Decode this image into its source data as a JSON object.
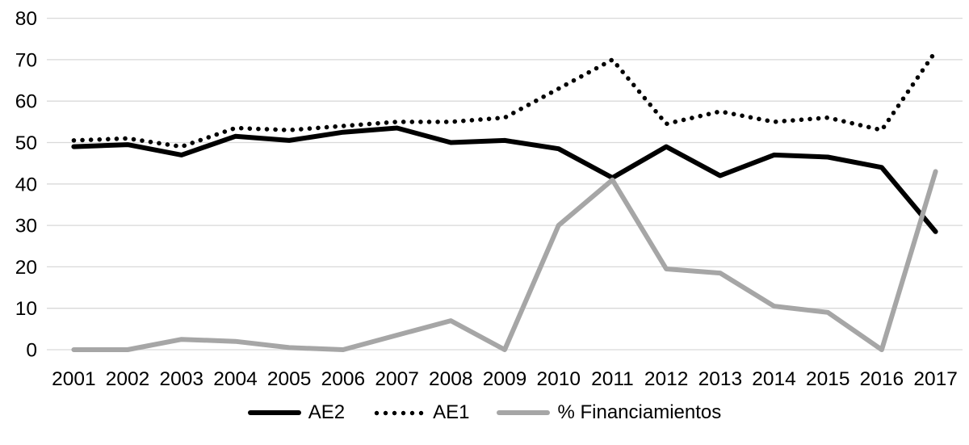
{
  "chart_data": {
    "type": "line",
    "title": "",
    "xlabel": "",
    "ylabel": "",
    "categories": [
      "2001",
      "2002",
      "2003",
      "2004",
      "2005",
      "2006",
      "2007",
      "2008",
      "2009",
      "2010",
      "2011",
      "2012",
      "2013",
      "2014",
      "2015",
      "2016",
      "2017"
    ],
    "series": [
      {
        "name": "AE2",
        "color": "#000000",
        "style": "solid",
        "values": [
          49,
          49.5,
          47,
          51.5,
          50.5,
          52.5,
          53.5,
          50,
          50.5,
          48.5,
          41.5,
          49,
          42,
          47,
          46.5,
          44,
          28.5
        ]
      },
      {
        "name": "AE1",
        "color": "#000000",
        "style": "dotted",
        "values": [
          50.5,
          51,
          49,
          53.5,
          53,
          54,
          55,
          55,
          56,
          63,
          70,
          54.5,
          57.5,
          55,
          56,
          53,
          72
        ]
      },
      {
        "name": "% Financiamientos",
        "color": "#a6a6a6",
        "style": "solid",
        "values": [
          0,
          0,
          2.5,
          2,
          0.5,
          0,
          3.5,
          7,
          0,
          30,
          41,
          19.5,
          18.5,
          10.5,
          9,
          0,
          43
        ]
      }
    ],
    "ylim": [
      0,
      80
    ],
    "yticks": [
      0,
      10,
      20,
      30,
      40,
      50,
      60,
      70,
      80
    ],
    "grid": "horizontal-only",
    "gridline_color": "#d9d9d9",
    "axis_text_color": "#000000",
    "background_color": "#ffffff",
    "legend_position": "bottom"
  }
}
